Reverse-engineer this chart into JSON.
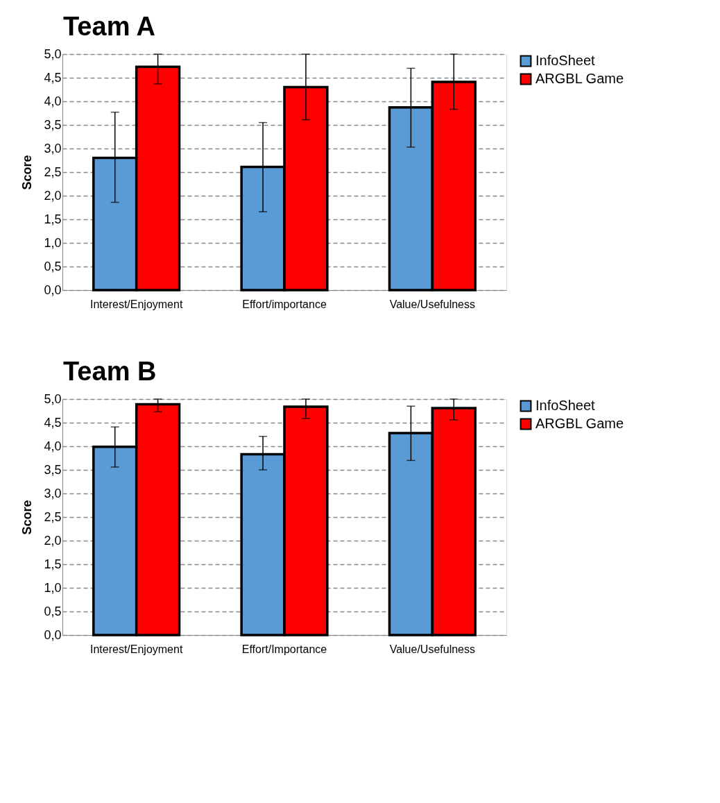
{
  "chart_data": [
    {
      "type": "bar",
      "title": "Team A",
      "ylabel": "Score",
      "categories": [
        "Interest/Enjoyment",
        "Effort/importance",
        "Value/Usefulness"
      ],
      "series": [
        {
          "name": "InfoSheet",
          "color": "#5b9bd5",
          "values": [
            2.8,
            2.61,
            3.87
          ],
          "errors": [
            [
              1.86,
              3.77
            ],
            [
              1.66,
              3.55
            ],
            [
              3.03,
              4.7
            ]
          ]
        },
        {
          "name": "ARGBL Game",
          "color": "#ff0000",
          "values": [
            4.73,
            4.3,
            4.41
          ],
          "errors": [
            [
              4.37,
              5.0
            ],
            [
              3.61,
              5.0
            ],
            [
              3.83,
              5.0
            ]
          ]
        }
      ],
      "ylim": [
        0,
        5
      ],
      "yticks": [
        {
          "value": 0,
          "label": "0,0"
        },
        {
          "value": 0.5,
          "label": "0,5"
        },
        {
          "value": 1,
          "label": "1,0"
        },
        {
          "value": 1.5,
          "label": "1,5"
        },
        {
          "value": 2,
          "label": "2,0"
        },
        {
          "value": 2.5,
          "label": "2,5"
        },
        {
          "value": 3,
          "label": "3,0"
        },
        {
          "value": 3.5,
          "label": "3,5"
        },
        {
          "value": 4,
          "label": "4,0"
        },
        {
          "value": 4.5,
          "label": "4,5"
        },
        {
          "value": 5,
          "label": "5,0"
        }
      ],
      "grid": "y",
      "legend": "right"
    },
    {
      "type": "bar",
      "title": "Team B",
      "ylabel": "Score",
      "categories": [
        "Interest/Enjoyment",
        "Effort/Importance",
        "Value/Usefulness"
      ],
      "series": [
        {
          "name": "InfoSheet",
          "color": "#5b9bd5",
          "values": [
            3.99,
            3.83,
            4.28
          ],
          "errors": [
            [
              3.56,
              4.41
            ],
            [
              3.5,
              4.21
            ],
            [
              3.7,
              4.85
            ]
          ]
        },
        {
          "name": "ARGBL Game",
          "color": "#ff0000",
          "values": [
            4.89,
            4.84,
            4.81
          ],
          "errors": [
            [
              4.73,
              5.0
            ],
            [
              4.59,
              5.0
            ],
            [
              4.56,
              5.0
            ]
          ]
        }
      ],
      "ylim": [
        0,
        5
      ],
      "yticks": [
        {
          "value": 0,
          "label": "0,0"
        },
        {
          "value": 0.5,
          "label": "0,5"
        },
        {
          "value": 1,
          "label": "1,0"
        },
        {
          "value": 1.5,
          "label": "1,5"
        },
        {
          "value": 2,
          "label": "2,0"
        },
        {
          "value": 2.5,
          "label": "2,5"
        },
        {
          "value": 3,
          "label": "3,0"
        },
        {
          "value": 3.5,
          "label": "3,5"
        },
        {
          "value": 4,
          "label": "4,0"
        },
        {
          "value": 4.5,
          "label": "4,5"
        },
        {
          "value": 5,
          "label": "5,0"
        }
      ],
      "grid": "y",
      "legend": "right"
    }
  ]
}
